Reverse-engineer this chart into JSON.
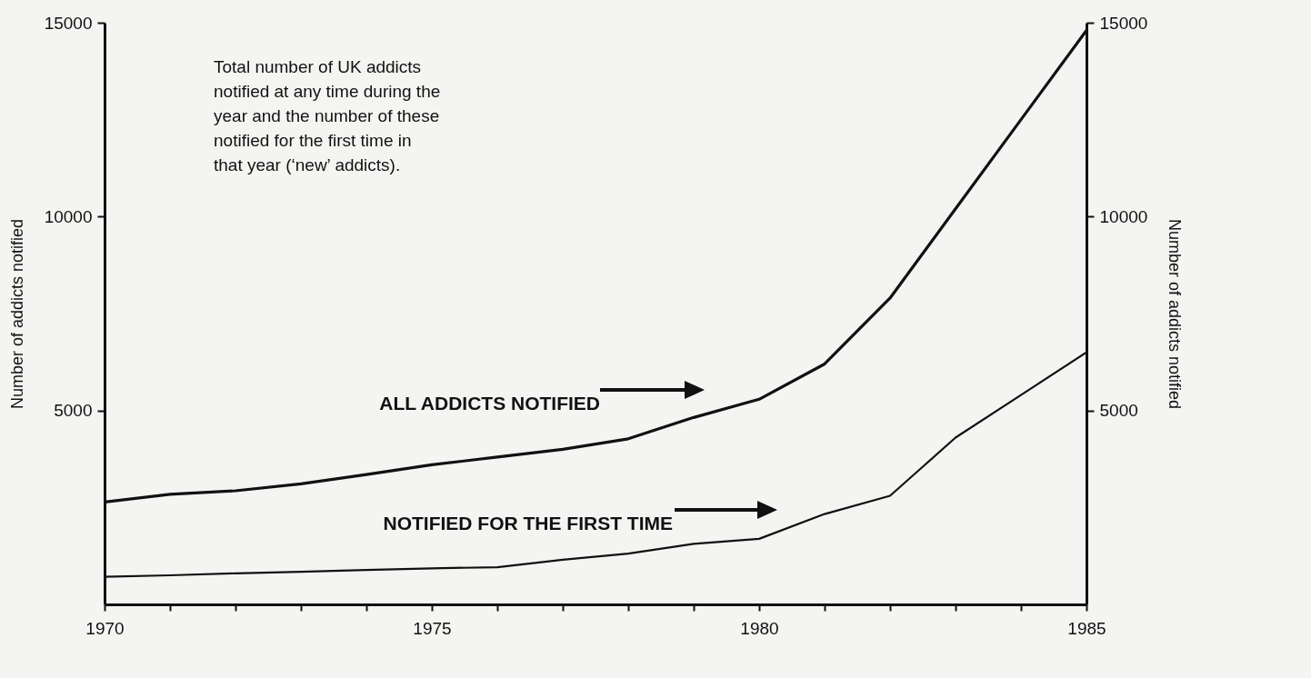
{
  "chart_data": {
    "type": "line",
    "annotations": [
      "Total number of UK addicts notified at any time during the year and the number of these notified for the first time in that year (‘new’ addicts)."
    ],
    "ylabel": "Number of addicts notified",
    "y2label": "Number of addicts notified",
    "x": [
      1970,
      1971,
      1972,
      1973,
      1974,
      1975,
      1976,
      1977,
      1978,
      1979,
      1980,
      1981,
      1982,
      1983,
      1984,
      1985
    ],
    "series": [
      {
        "name": "ALL ADDICTS NOTIFIED",
        "color": "#111111",
        "values": [
          2640,
          2840,
          2930,
          3110,
          3350,
          3600,
          3800,
          4000,
          4270,
          4820,
          5290,
          6200,
          7900,
          10200,
          12500,
          14800
        ]
      },
      {
        "name": "NOTIFIED FOR THE FIRST TIME",
        "color": "#111111",
        "values": [
          710,
          750,
          800,
          840,
          890,
          930,
          960,
          1150,
          1310,
          1560,
          1690,
          2330,
          2800,
          4300,
          5400,
          6500
        ]
      }
    ],
    "xlim": [
      1970,
      1985
    ],
    "xticks": [
      1970,
      {
        "value": 1971,
        "label": null
      },
      {
        "value": 1972,
        "label": null
      },
      {
        "value": 1973,
        "label": null
      },
      {
        "value": 1974,
        "label": null
      },
      1975,
      {
        "value": 1976,
        "label": null
      },
      {
        "value": 1977,
        "label": null
      },
      {
        "value": 1978,
        "label": null
      },
      {
        "value": 1979,
        "label": null
      },
      1980,
      {
        "value": 1981,
        "label": null
      },
      {
        "value": 1982,
        "label": null
      },
      {
        "value": 1983,
        "label": null
      },
      {
        "value": 1984,
        "label": null
      },
      1985
    ],
    "ylim": [
      0,
      15000
    ],
    "yticks": [
      5000,
      10000,
      15000
    ],
    "y2lim": [
      0,
      15000
    ],
    "y2ticks": [
      5000,
      10000,
      15000
    ],
    "grid": false
  }
}
